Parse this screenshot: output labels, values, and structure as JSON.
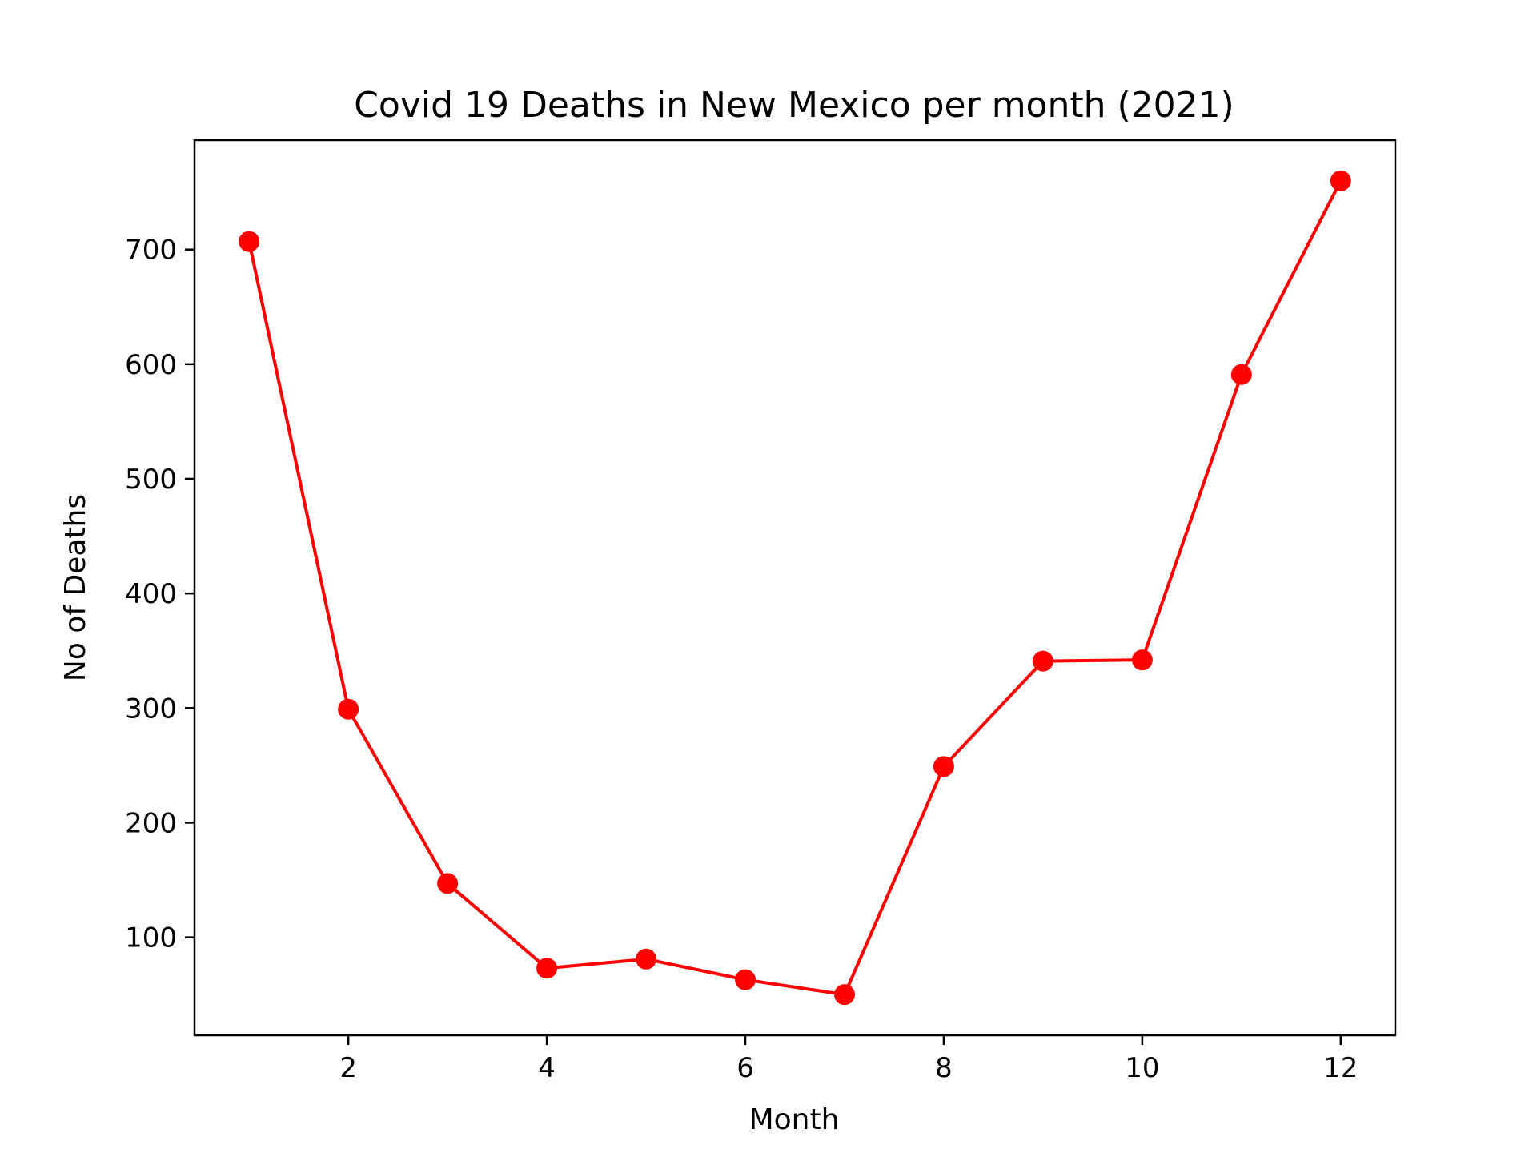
{
  "chart_data": {
    "type": "line",
    "title": "Covid 19 Deaths in New Mexico per month (2021)",
    "xlabel": "Month",
    "ylabel": "No of Deaths",
    "x": [
      1,
      2,
      3,
      4,
      5,
      6,
      7,
      8,
      9,
      10,
      11,
      12
    ],
    "series": [
      {
        "values": [
          707,
          299,
          147,
          73,
          81,
          63,
          50,
          249,
          341,
          342,
          591,
          760
        ],
        "color": "#ff0000",
        "marker": "circle"
      }
    ],
    "xlim": [
      0.45,
      12.55
    ],
    "ylim": [
      14.5,
      795.5
    ],
    "xticks": [
      2,
      4,
      6,
      8,
      10,
      12
    ],
    "yticks": [
      100,
      200,
      300,
      400,
      500,
      600,
      700
    ],
    "grid": false,
    "legend": "none"
  }
}
